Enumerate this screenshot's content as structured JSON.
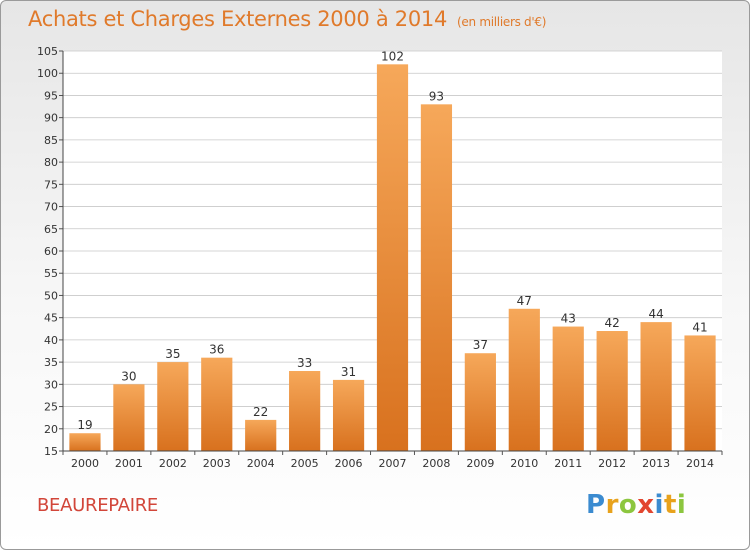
{
  "header": {
    "title": "Achats et Charges Externes 2000 à 2014",
    "unit": "(en milliers d'€)"
  },
  "commune": "BEAUREPAIRE",
  "logo": {
    "letters": [
      "P",
      "r",
      "o",
      "x",
      "i",
      "t",
      "i"
    ],
    "colors": [
      "#3b8bd0",
      "#e8a21c",
      "#8cc63f",
      "#e2452f",
      "#3b8bd0",
      "#e8a21c",
      "#8cc63f"
    ]
  },
  "colors": {
    "bar_light": "#f6a85a",
    "bar_dark": "#d8711e",
    "accent": "#e07a2b",
    "grid": "#c8c8c8"
  },
  "chart_data": {
    "type": "bar",
    "title": "Achats et Charges Externes 2000 à 2014",
    "subtitle": "(en milliers d'€)",
    "categories": [
      "2000",
      "2001",
      "2002",
      "2003",
      "2004",
      "2005",
      "2006",
      "2007",
      "2008",
      "2009",
      "2010",
      "2011",
      "2012",
      "2013",
      "2014"
    ],
    "values": [
      19,
      30,
      35,
      36,
      22,
      33,
      31,
      102,
      93,
      37,
      47,
      43,
      42,
      44,
      41
    ],
    "ylim": [
      15,
      105
    ],
    "yticks": [
      15,
      20,
      25,
      30,
      35,
      40,
      45,
      50,
      55,
      60,
      65,
      70,
      75,
      80,
      85,
      90,
      95,
      100,
      105
    ],
    "grid": true,
    "data_labels": true
  }
}
